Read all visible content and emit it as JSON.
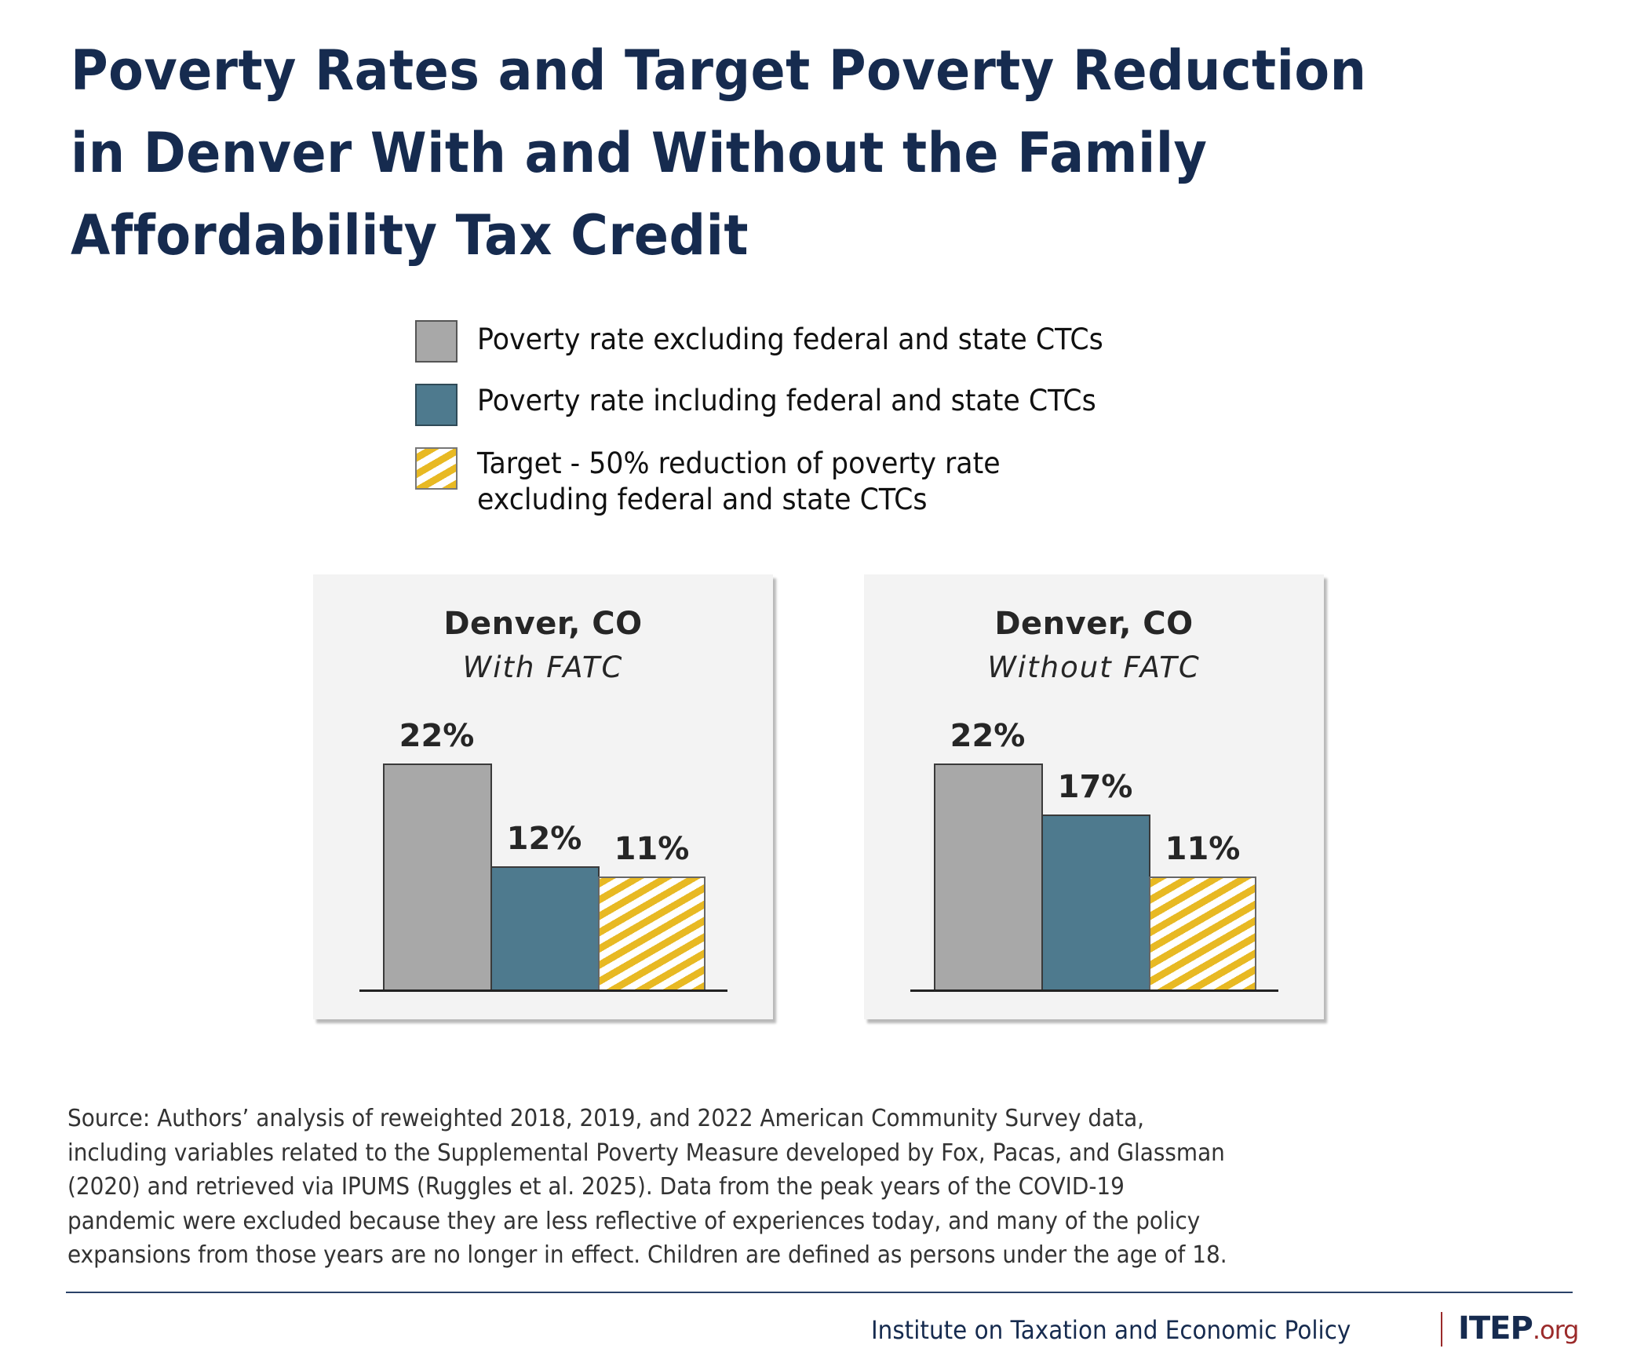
{
  "title": {
    "lines": [
      "Poverty Rates and Target Poverty Reduction",
      "in Denver With and Without the Family",
      "Affordability Tax Credit"
    ]
  },
  "legend": {
    "items": [
      {
        "label_lines": [
          "Poverty rate excluding federal and state CTCs"
        ],
        "swatch": "gray-solid",
        "color": "#a8a8a8"
      },
      {
        "label_lines": [
          "Poverty rate including federal and state CTCs"
        ],
        "swatch": "blue-solid",
        "color": "#4e7a8e"
      },
      {
        "label_lines": [
          "Target - 50% reduction of poverty rate",
          "excluding federal and state CTCs"
        ],
        "swatch": "yellow-hatched",
        "color": "#e8b923"
      }
    ]
  },
  "chart_data": [
    {
      "type": "bar",
      "title": "Denver, CO",
      "subtitle": "With FATC",
      "categories": [
        "Poverty rate excluding federal and state CTCs",
        "Poverty rate including federal and state CTCs",
        "Target - 50% reduction of poverty rate excluding federal and state CTCs"
      ],
      "values": [
        22,
        12,
        11
      ],
      "value_labels": [
        "22%",
        "12%",
        "11%"
      ],
      "colors": [
        "#a8a8a8",
        "#4e7a8e",
        "#e8b923"
      ],
      "xlabel": "",
      "ylabel": "",
      "ylim": [
        0,
        22
      ],
      "grid": false,
      "legend": "top"
    },
    {
      "type": "bar",
      "title": "Denver, CO",
      "subtitle": "Without FATC",
      "categories": [
        "Poverty rate excluding federal and state CTCs",
        "Poverty rate including federal and state CTCs",
        "Target - 50% reduction of poverty rate excluding federal and state CTCs"
      ],
      "values": [
        22,
        17,
        11
      ],
      "value_labels": [
        "22%",
        "17%",
        "11%"
      ],
      "colors": [
        "#a8a8a8",
        "#4e7a8e",
        "#e8b923"
      ],
      "xlabel": "",
      "ylabel": "",
      "ylim": [
        0,
        22
      ],
      "grid": false,
      "legend": "top"
    }
  ],
  "source": {
    "lines": [
      "Source: Authors’ analysis of reweighted 2018, 2019, and 2022 American Community Survey data,",
      "including variables related to the Supplemental Poverty Measure developed by Fox, Pacas, and Glassman",
      "(2020) and retrieved via IPUMS (Ruggles et al. 2025). Data from the peak years of the COVID-19",
      "pandemic were excluded because they are less reflective of experiences today, and many of the policy",
      "expansions from those years are no longer in effect. Children are defined as persons under the age of 18."
    ]
  },
  "footer": {
    "organization": "Institute on Taxation and Economic Policy",
    "logo_main": "ITEP",
    "logo_suffix": ".org"
  },
  "colors": {
    "title": "#162b4f",
    "accent_red": "#9b2a2a",
    "gray_bar": "#a8a8a8",
    "blue_bar": "#4e7a8e",
    "yellow_hatch": "#e8b923",
    "panel_bg": "#f3f3f3"
  }
}
